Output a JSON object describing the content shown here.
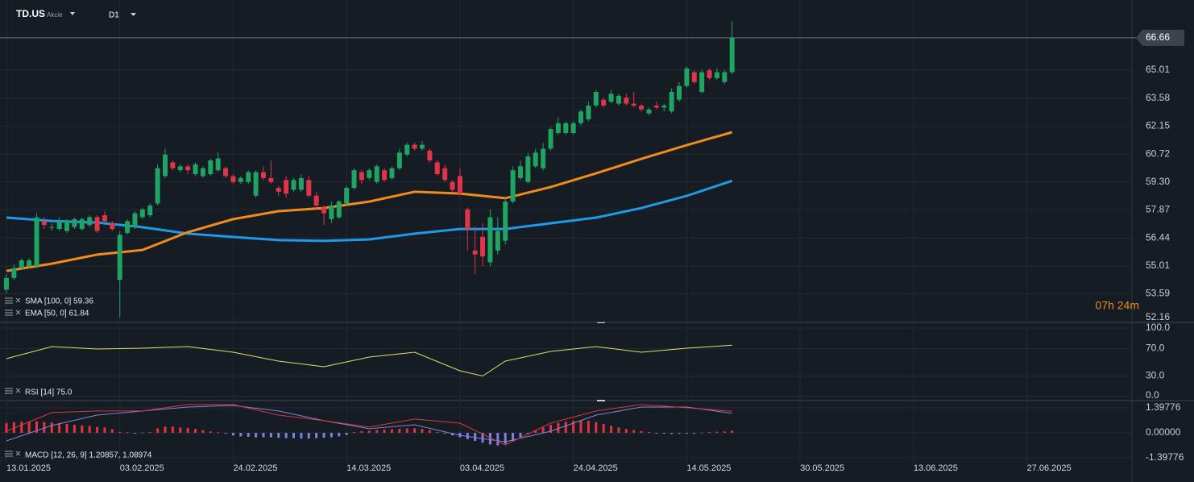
{
  "header": {
    "symbol": "TD.US",
    "asset_type": "Akcie",
    "timeframe": "D1"
  },
  "chart_data": [
    {
      "type": "candlestick",
      "up_color": "#1fa463",
      "down_color": "#e0344b",
      "open": [
        53.8,
        54.4,
        54.9,
        55.0,
        55.0,
        57.3,
        57.0,
        56.9,
        56.8,
        57.0,
        56.9,
        57.1,
        57.5,
        57.6,
        57.2,
        54.3,
        56.7,
        57.0,
        57.5,
        57.6,
        58.2,
        59.6,
        60.3,
        59.9,
        60.1,
        59.7,
        59.6,
        59.7,
        59.9,
        60.0,
        59.6,
        59.3,
        59.3,
        58.6,
        59.8,
        59.5,
        59.0,
        59.4,
        58.9,
        58.9,
        59.4,
        58.6,
        58.0,
        57.4,
        57.5,
        58.2,
        59.0,
        59.8,
        59.5,
        59.3,
        59.9,
        59.5,
        60.0,
        60.7,
        61.2,
        61.0,
        60.9,
        60.3,
        60.0,
        59.3,
        59.6,
        57.9,
        55.8,
        56.5,
        55.2,
        55.8,
        56.3,
        58.3,
        59.5,
        59.3,
        60.1,
        60.0,
        61.0,
        61.8,
        61.8,
        61.8,
        62.3,
        62.5,
        63.2,
        63.5,
        63.4,
        63.3,
        63.6,
        63.3,
        63.2,
        62.8,
        63.2,
        63.1,
        62.9,
        63.5,
        64.2,
        64.9,
        63.9,
        65.0,
        64.6,
        64.4,
        64.9
      ],
      "high": [
        54.6,
        55.1,
        55.4,
        55.4,
        57.7,
        57.5,
        57.2,
        57.5,
        57.4,
        57.5,
        57.5,
        57.6,
        57.6,
        57.8,
        57.3,
        56.8,
        57.4,
        57.8,
        58.0,
        58.2,
        60.2,
        61.0,
        60.4,
        60.2,
        60.2,
        60.3,
        60.1,
        60.5,
        60.8,
        60.1,
        59.7,
        59.6,
        59.9,
        59.9,
        60.1,
        60.4,
        59.1,
        59.6,
        59.5,
        59.7,
        59.6,
        58.8,
        58.1,
        58.3,
        58.4,
        59.1,
        60.0,
        59.9,
        60.0,
        60.2,
        60.0,
        60.1,
        61.0,
        61.3,
        61.3,
        61.4,
        61.0,
        60.4,
        60.2,
        59.4,
        60.0,
        58.0,
        57.0,
        57.2,
        57.9,
        57.5,
        58.5,
        60.1,
        60.4,
        60.8,
        61.0,
        61.3,
        62.1,
        62.6,
        62.4,
        62.4,
        63.0,
        63.4,
        64.0,
        63.6,
        64.0,
        63.8,
        63.8,
        63.9,
        63.3,
        63.1,
        63.4,
        63.3,
        64.1,
        64.4,
        65.2,
        65.0,
        65.0,
        65.1,
        65.1,
        65.0,
        67.5
      ],
      "low": [
        53.6,
        54.3,
        54.8,
        54.9,
        54.9,
        56.9,
        56.8,
        56.8,
        56.7,
        56.9,
        56.8,
        57.0,
        56.7,
        57.2,
        56.8,
        52.4,
        56.6,
        56.9,
        57.4,
        57.5,
        58.1,
        59.5,
        59.9,
        59.8,
        59.7,
        59.6,
        59.5,
        59.6,
        59.8,
        59.5,
        59.2,
        59.2,
        59.2,
        58.5,
        59.4,
        59.2,
        58.6,
        58.5,
        58.8,
        58.8,
        58.5,
        57.9,
        57.1,
        57.2,
        57.4,
        58.1,
        58.9,
        59.2,
        59.4,
        59.2,
        59.3,
        59.4,
        59.9,
        60.6,
        60.9,
        60.9,
        60.3,
        59.6,
        59.3,
        58.8,
        58.6,
        55.8,
        54.6,
        55.0,
        55.0,
        55.6,
        56.1,
        58.2,
        59.4,
        59.2,
        60.0,
        59.9,
        60.9,
        61.7,
        61.7,
        61.7,
        62.2,
        62.4,
        63.1,
        63.1,
        63.3,
        63.2,
        63.2,
        63.1,
        62.9,
        62.7,
        63.0,
        62.9,
        62.8,
        63.4,
        64.1,
        64.3,
        63.8,
        64.5,
        64.5,
        64.3,
        64.8
      ],
      "close": [
        54.4,
        54.9,
        55.3,
        55.3,
        57.5,
        57.1,
        57.0,
        57.3,
        57.3,
        57.4,
        57.4,
        57.5,
        56.8,
        57.3,
        56.9,
        56.6,
        57.3,
        57.7,
        57.9,
        58.1,
        60.0,
        60.7,
        60.0,
        60.1,
        59.9,
        60.2,
        60.0,
        60.4,
        60.5,
        59.6,
        59.3,
        59.5,
        59.8,
        59.8,
        59.5,
        59.3,
        58.8,
        58.7,
        59.4,
        59.5,
        58.6,
        58.1,
        57.7,
        58.1,
        58.3,
        59.0,
        59.9,
        59.4,
        59.9,
        60.1,
        59.4,
        60.0,
        60.8,
        61.2,
        61.0,
        61.2,
        60.4,
        59.7,
        59.4,
        58.9,
        58.7,
        56.9,
        55.6,
        55.5,
        57.5,
        56.8,
        58.3,
        59.9,
        60.1,
        60.6,
        60.8,
        61.0,
        62.0,
        62.3,
        62.3,
        62.3,
        62.9,
        63.2,
        63.9,
        63.2,
        63.8,
        63.7,
        63.3,
        63.2,
        63.0,
        63.0,
        63.1,
        63.2,
        63.9,
        64.2,
        65.1,
        64.4,
        64.9,
        64.6,
        64.9,
        64.9,
        66.66
      ],
      "xlim": [
        -0.85,
        148.9
      ],
      "xticks": [
        {
          "value": 0,
          "label": "13.01.2025"
        },
        {
          "value": 15,
          "label": "03.02.2025"
        },
        {
          "value": 30,
          "label": "24.02.2025"
        },
        {
          "value": 45,
          "label": "14.03.2025"
        },
        {
          "value": 60,
          "label": "03.04.2025"
        },
        {
          "value": 75,
          "label": "24.04.2025"
        },
        {
          "value": 90,
          "label": "14.05.2025"
        },
        {
          "value": 105,
          "label": "30.05.2025"
        },
        {
          "value": 120,
          "label": "13.06.2025"
        },
        {
          "value": 135,
          "label": "27.06.2025"
        }
      ],
      "ylim": [
        52.13,
        68.59
      ],
      "yticks": [
        {
          "value": 65.01,
          "label": "65.01"
        },
        {
          "value": 63.58,
          "label": "63.58"
        },
        {
          "value": 62.15,
          "label": "62.15"
        },
        {
          "value": 60.72,
          "label": "60.72"
        },
        {
          "value": 59.3,
          "label": "59.30"
        },
        {
          "value": 57.87,
          "label": "57.87"
        },
        {
          "value": 56.44,
          "label": "56.44"
        },
        {
          "value": 55.01,
          "label": "55.01"
        },
        {
          "value": 53.59,
          "label": "53.59"
        },
        {
          "value": 52.16,
          "label": "52.16"
        }
      ],
      "last_price": 66.66,
      "grid": true,
      "indicators": [
        {
          "name": "SMA [100, 0] 59.36",
          "color": "#1e9be8",
          "x": [
            0,
            6,
            12,
            18,
            24,
            30,
            36,
            42,
            48,
            54,
            60,
            66,
            72,
            78,
            84,
            90,
            96
          ],
          "values": [
            57.48,
            57.31,
            57.23,
            56.99,
            56.66,
            56.49,
            56.33,
            56.29,
            56.37,
            56.66,
            56.9,
            56.9,
            57.19,
            57.48,
            57.97,
            58.59,
            59.36
          ]
        },
        {
          "name": "EMA [50, 0] 61.84",
          "color": "#f28a1d",
          "x": [
            0,
            6,
            12,
            18,
            24,
            30,
            36,
            42,
            48,
            54,
            60,
            66,
            72,
            78,
            84,
            90,
            96
          ],
          "values": [
            54.76,
            55.13,
            55.59,
            55.83,
            56.74,
            57.4,
            57.81,
            57.97,
            58.3,
            58.8,
            58.71,
            58.47,
            59.04,
            59.74,
            60.48,
            61.18,
            61.84
          ]
        }
      ],
      "countdown": "07h 24m"
    },
    {
      "type": "line",
      "legend": "RSI [14] 75.0",
      "color": "#e3dd74",
      "x": [
        0,
        6,
        12,
        18,
        24,
        30,
        36,
        42,
        48,
        54,
        60,
        63,
        66,
        72,
        78,
        84,
        90,
        96
      ],
      "values": [
        55.3,
        72.9,
        69.4,
        70.6,
        72.9,
        64.7,
        51.8,
        43.5,
        57.6,
        64.7,
        37.6,
        30.0,
        51.8,
        65.9,
        72.9,
        64.7,
        70.6,
        75.0
      ],
      "ylim": [
        0,
        100
      ],
      "yticks": [
        {
          "value": 100,
          "label": "100.0"
        },
        {
          "value": 70,
          "label": "70.0"
        },
        {
          "value": 30,
          "label": "30.0"
        },
        {
          "value": 0,
          "label": "0.0"
        }
      ]
    },
    {
      "type": "macd",
      "legend": "MACD [12, 26, 9] 1.20857, 1.08974",
      "positive_color": "#e53340",
      "negative_color": "#7b82e6",
      "histogram": [
        0.55,
        0.6,
        0.62,
        0.63,
        0.65,
        0.6,
        0.58,
        0.55,
        0.5,
        0.45,
        0.42,
        0.38,
        0.33,
        0.3,
        0.2,
        0.05,
        0.03,
        -0.02,
        0.02,
        0.05,
        0.25,
        0.35,
        0.35,
        0.3,
        0.28,
        0.22,
        0.15,
        0.08,
        0.03,
        -0.05,
        -0.15,
        -0.2,
        -0.22,
        -0.25,
        -0.25,
        -0.25,
        -0.28,
        -0.3,
        -0.3,
        -0.32,
        -0.32,
        -0.3,
        -0.28,
        -0.25,
        -0.2,
        -0.12,
        0.05,
        0.1,
        0.12,
        0.15,
        0.18,
        0.2,
        0.22,
        0.25,
        0.25,
        0.22,
        0.15,
        0.05,
        -0.05,
        -0.15,
        -0.25,
        -0.35,
        -0.45,
        -0.55,
        -0.65,
        -0.7,
        -0.62,
        -0.45,
        -0.25,
        -0.05,
        0.15,
        0.3,
        0.45,
        0.55,
        0.62,
        0.68,
        0.7,
        0.68,
        0.6,
        0.5,
        0.4,
        0.3,
        0.22,
        0.15,
        0.1,
        0.05,
        -0.03,
        -0.05,
        -0.06,
        -0.05,
        -0.04,
        -0.02,
        0.02,
        0.05,
        0.06,
        0.08,
        0.12
      ],
      "x": [
        0,
        6,
        12,
        18,
        24,
        30,
        36,
        42,
        48,
        54,
        60,
        66,
        72,
        78,
        84,
        90,
        96
      ],
      "macd_line": {
        "color": "#e0343f",
        "values": [
          0.09,
          1.13,
          1.22,
          1.22,
          1.58,
          1.58,
          0.99,
          0.68,
          0.32,
          0.77,
          0.54,
          -0.68,
          0.54,
          1.22,
          1.58,
          1.4,
          1.20857
        ]
      },
      "signal_line": {
        "color": "#7f86d6",
        "values": [
          -0.45,
          0.41,
          0.99,
          1.22,
          1.44,
          1.53,
          1.22,
          0.68,
          0.23,
          0.45,
          -0.14,
          -0.5,
          0.09,
          0.99,
          1.44,
          1.44,
          1.08974
        ]
      },
      "ylim": [
        -1.712,
        1.757
      ],
      "yticks": [
        {
          "value": 1.39776,
          "label": "1.39776"
        },
        {
          "value": 0,
          "label": "0.00000"
        },
        {
          "value": -1.39776,
          "label": "-1.39776"
        }
      ]
    }
  ]
}
